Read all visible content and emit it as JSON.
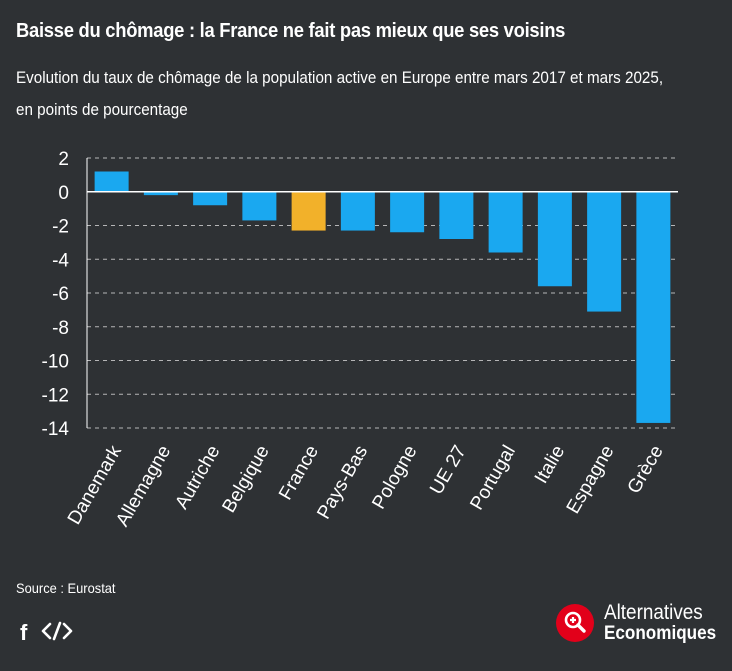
{
  "header": {
    "title": "Baisse du chômage : la France ne fait pas mieux que ses voisins",
    "subtitle_line1": "Evolution du taux de chômage de la population active en Europe entre mars 2017 et mars 2025,",
    "subtitle_line2": "en points de pourcentage"
  },
  "footer": {
    "source": "Source : Eurostat",
    "share_icons": [
      "facebook-icon",
      "embed-code-icon"
    ]
  },
  "logo": {
    "line1": "Alternatives",
    "line2": "Economiques",
    "color": "#e2001a"
  },
  "colors": {
    "bar": "#1aa8f0",
    "highlight": "#f2b12a",
    "background": "#2e3134"
  },
  "chart_data": {
    "type": "bar",
    "title": "Baisse du chômage : la France ne fait pas mieux que ses voisins",
    "xlabel": "",
    "ylabel": "",
    "categories": [
      "Danemark",
      "Allemagne",
      "Autriche",
      "Belgique",
      "France",
      "Pays-Bas",
      "Pologne",
      "UE 27",
      "Portugal",
      "Italie",
      "Espagne",
      "Grèce"
    ],
    "values": [
      1.2,
      -0.2,
      -0.8,
      -1.7,
      -2.3,
      -2.3,
      -2.4,
      -2.8,
      -3.6,
      -5.6,
      -7.1,
      -13.7
    ],
    "highlight": "France",
    "ylim": [
      -14,
      2
    ],
    "yticks": [
      2,
      0,
      -2,
      -4,
      -6,
      -8,
      -10,
      -12,
      -14
    ],
    "grid": true
  }
}
